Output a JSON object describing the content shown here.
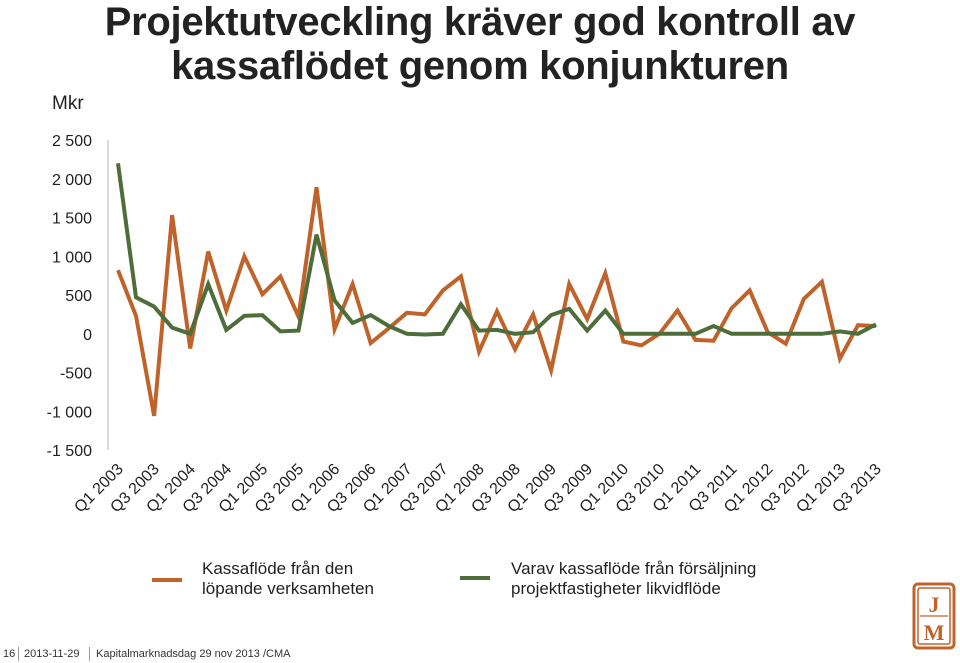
{
  "title_line1": "Projektutveckling kräver god kontroll av",
  "title_line2": "kassaflödet genom konjunkturen",
  "unit": "Mkr",
  "legend": {
    "series1_line1": "Kassaflöde från den",
    "series1_line2": "löpande verksamheten",
    "series2_line1": "Varav kassaflöde från försäljning",
    "series2_line2": "projektfastigheter likvidflöde"
  },
  "footer": {
    "page": "16",
    "date": "2013-11-29",
    "event": "Kapitalmarknadsdag 29 nov 2013 /CMA"
  },
  "logo_text": "JM",
  "colors": {
    "series1": "#c0632a",
    "series2": "#4d6d3a",
    "logo": "#c0632a"
  },
  "chart_data": {
    "type": "line",
    "ylim": [
      -1500,
      2500
    ],
    "yticks": [
      2500,
      2000,
      1500,
      1000,
      500,
      0,
      -500,
      -1000,
      -1500
    ],
    "ytick_labels": [
      "2 500",
      "2 000",
      "1 500",
      "1 000",
      "500",
      "0",
      "-500",
      "-1 000",
      "-1 500"
    ],
    "xtick_labels": [
      "Q1 2003",
      "Q3 2003",
      "Q1 2004",
      "Q3 2004",
      "Q1 2005",
      "Q3 2005",
      "Q1 2006",
      "Q3 2006",
      "Q1 2007",
      "Q3 2007",
      "Q1 2008",
      "Q3 2008",
      "Q1 2009",
      "Q3 2009",
      "Q1 2010",
      "Q3 2010",
      "Q1 2011",
      "Q3 2011",
      "Q1 2012",
      "Q3 2012",
      "Q1 2013",
      "Q3 2013"
    ],
    "categories": [
      "Q1 2003",
      "Q2 2003",
      "Q3 2003",
      "Q4 2003",
      "Q1 2004",
      "Q2 2004",
      "Q3 2004",
      "Q4 2004",
      "Q1 2005",
      "Q2 2005",
      "Q3 2005",
      "Q4 2005",
      "Q1 2006",
      "Q2 2006",
      "Q3 2006",
      "Q4 2006",
      "Q1 2007",
      "Q2 2007",
      "Q3 2007",
      "Q4 2007",
      "Q1 2008",
      "Q2 2008",
      "Q3 2008",
      "Q4 2008",
      "Q1 2009",
      "Q2 2009",
      "Q3 2009",
      "Q4 2009",
      "Q1 2010",
      "Q2 2010",
      "Q3 2010",
      "Q4 2010",
      "Q1 2011",
      "Q2 2011",
      "Q3 2011",
      "Q4 2011",
      "Q1 2012",
      "Q2 2012",
      "Q3 2012",
      "Q4 2012",
      "Q1 2013",
      "Q2 2013",
      "Q3 2013"
    ],
    "series": [
      {
        "values": [
          820,
          230,
          -1060,
          1530,
          -190,
          1060,
          300,
          1000,
          510,
          740,
          220,
          1890,
          60,
          640,
          -120,
          70,
          270,
          250,
          560,
          740,
          -230,
          290,
          -200,
          250,
          -470,
          640,
          190,
          780,
          -100,
          -150,
          0,
          300,
          -80,
          -90,
          330,
          560,
          20,
          -130,
          450,
          670,
          -320,
          110,
          100
        ]
      },
      {
        "values": [
          2200,
          470,
          350,
          80,
          0,
          640,
          50,
          230,
          240,
          30,
          40,
          1280,
          430,
          140,
          240,
          100,
          0,
          -10,
          0,
          380,
          40,
          50,
          0,
          20,
          240,
          320,
          40,
          300,
          0,
          0,
          0,
          0,
          0,
          100,
          0,
          0,
          0,
          0,
          0,
          0,
          30,
          0,
          120
        ]
      }
    ]
  }
}
